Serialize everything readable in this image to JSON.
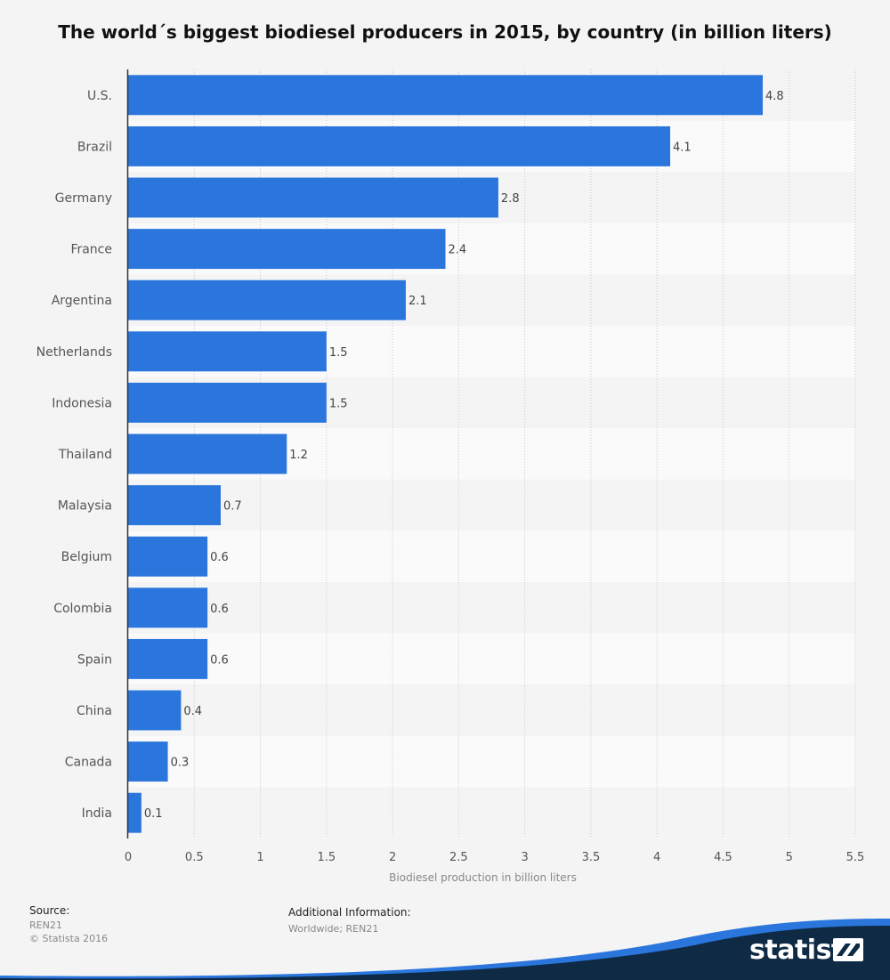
{
  "chart_data": {
    "type": "bar",
    "orientation": "horizontal",
    "title": "The world´s biggest biodiesel producers in 2015, by country (in billion liters)",
    "xlabel": "Biodiesel production in billion liters",
    "ylabel": "",
    "categories": [
      "U.S.",
      "Brazil",
      "Germany",
      "France",
      "Argentina",
      "Netherlands",
      "Indonesia",
      "Thailand",
      "Malaysia",
      "Belgium",
      "Colombia",
      "Spain",
      "China",
      "Canada",
      "India"
    ],
    "values": [
      4.8,
      4.1,
      2.8,
      2.4,
      2.1,
      1.5,
      1.5,
      1.2,
      0.7,
      0.6,
      0.6,
      0.6,
      0.4,
      0.3,
      0.1
    ],
    "value_labels": [
      "4.8",
      "4.1",
      "2.8",
      "2.4",
      "2.1",
      "1.5",
      "1.5",
      "1.2",
      "0.7",
      "0.6",
      "0.6",
      "0.6",
      "0.4",
      "0.3",
      "0.1"
    ],
    "xlim": [
      0,
      5.5
    ],
    "xticks": [
      "0",
      "0.5",
      "1",
      "1.5",
      "2",
      "2.5",
      "3",
      "3.5",
      "4",
      "4.5",
      "5",
      "5.5"
    ],
    "grid": true,
    "legend": "none",
    "bar_color": "#2a76dd"
  },
  "footer": {
    "source_label": "Source:",
    "source_lines": [
      "REN21",
      "© Statista 2016"
    ],
    "info_label": "Additional Information:",
    "info_lines": [
      "Worldwide; REN21"
    ]
  },
  "brand": {
    "name": "statista",
    "color_dark": "#0f2a44",
    "color_accent": "#2a76dd"
  }
}
